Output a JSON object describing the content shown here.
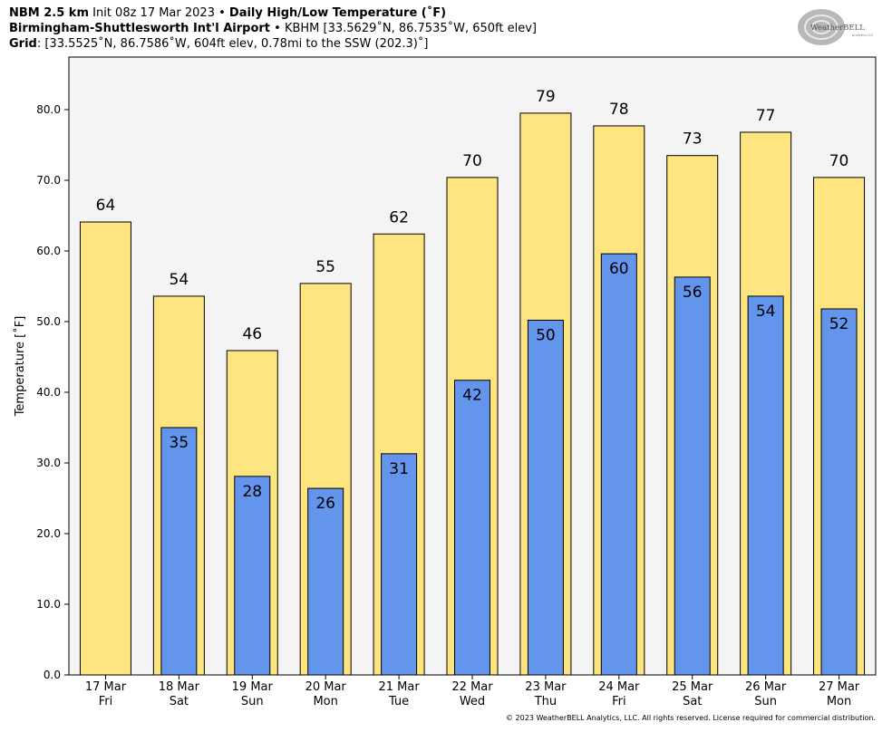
{
  "header": {
    "line1_bold": "NBM 2.5 km",
    "line1_text": " Init 08z 17 Mar 2023 • ",
    "line1_bold2": "Daily High/Low Temperature (˚F)",
    "line2_bold": "Birmingham-Shuttlesworth Int'l Airport",
    "line2_text": " • KBHM [33.5629˚N, 86.7535˚W, 650ft elev]",
    "line3_bold": "Grid",
    "line3_text": ": [33.5525˚N, 86.7586˚W, 604ft elev, 0.78mi to the SSW (202.3)˚]"
  },
  "logo": {
    "text": "WeatherBELL",
    "subtext": "Analytics LLC"
  },
  "copyright": "© 2023 WeatherBELL Analytics, LLC. All rights reserved. License required for commercial distribution.",
  "chart_data": {
    "type": "bar",
    "title": "Daily High/Low Temperature (˚F)",
    "ylabel": "Temperature [˚F]",
    "xlabel": "",
    "ylim": [
      0,
      88
    ],
    "yticks": [
      "0.0",
      "10.0",
      "20.0",
      "30.0",
      "40.0",
      "50.0",
      "60.0",
      "70.0",
      "80.0"
    ],
    "categories": [
      {
        "date": "17 Mar",
        "day": "Fri"
      },
      {
        "date": "18 Mar",
        "day": "Sat"
      },
      {
        "date": "19 Mar",
        "day": "Sun"
      },
      {
        "date": "20 Mar",
        "day": "Mon"
      },
      {
        "date": "21 Mar",
        "day": "Tue"
      },
      {
        "date": "22 Mar",
        "day": "Wed"
      },
      {
        "date": "23 Mar",
        "day": "Thu"
      },
      {
        "date": "24 Mar",
        "day": "Fri"
      },
      {
        "date": "25 Mar",
        "day": "Sat"
      },
      {
        "date": "26 Mar",
        "day": "Sun"
      },
      {
        "date": "27 Mar",
        "day": "Mon"
      }
    ],
    "series": [
      {
        "values": [
          64.1,
          53.6,
          45.9,
          55.4,
          62.4,
          70.4,
          79.5,
          77.7,
          73.5,
          76.8,
          70.4
        ],
        "labels": [
          "64",
          "54",
          "46",
          "55",
          "62",
          "70",
          "79",
          "78",
          "73",
          "77",
          "70"
        ],
        "color": "#ffe57f"
      },
      {
        "values": [
          null,
          35.0,
          28.1,
          26.4,
          31.3,
          41.7,
          50.2,
          59.6,
          56.3,
          53.6,
          51.8
        ],
        "labels": [
          "",
          "35",
          "28",
          "26",
          "31",
          "42",
          "50",
          "60",
          "56",
          "54",
          "52"
        ],
        "color": "#6495ed"
      }
    ],
    "background": "#f4f4f4",
    "grid": false,
    "legend": "none"
  }
}
